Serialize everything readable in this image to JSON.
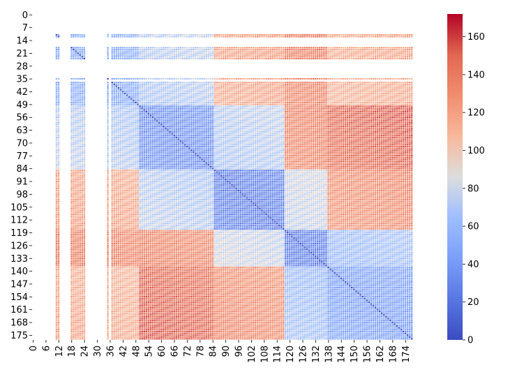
{
  "chart_data": {
    "type": "heatmap",
    "title": "",
    "xlabel": "",
    "ylabel": "",
    "n_rows": 178,
    "n_cols": 178,
    "row_tick_labels": [
      "0",
      "7",
      "14",
      "21",
      "28",
      "35",
      "42",
      "49",
      "56",
      "63",
      "70",
      "77",
      "84",
      "91",
      "98",
      "105",
      "112",
      "119",
      "126",
      "133",
      "140",
      "147",
      "154",
      "161",
      "168",
      "175"
    ],
    "col_tick_labels": [
      "0",
      "6",
      "12",
      "18",
      "24",
      "30",
      "36",
      "42",
      "48",
      "54",
      "60",
      "66",
      "72",
      "78",
      "84",
      "90",
      "96",
      "102",
      "108",
      "114",
      "120",
      "126",
      "132",
      "138",
      "144",
      "150",
      "156",
      "162",
      "168",
      "174"
    ],
    "colorbar": {
      "vmin": 0,
      "vmax": 172,
      "ticks": [
        "0",
        "20",
        "40",
        "60",
        "80",
        "100",
        "120",
        "140",
        "160"
      ],
      "colormap": "coolwarm",
      "low_color": "#3b4cc0",
      "mid_color": "#dddddd",
      "high_color": "#b40426"
    },
    "matrix_description_values": {
      "diagonal": 0,
      "blank_rows_cols": [
        0,
        1,
        2,
        3,
        4,
        5,
        6,
        7,
        8,
        9,
        10,
        13,
        14,
        15,
        16,
        17,
        25,
        26,
        27,
        28,
        29,
        30,
        31,
        32,
        33,
        34,
        36
      ]
    }
  }
}
